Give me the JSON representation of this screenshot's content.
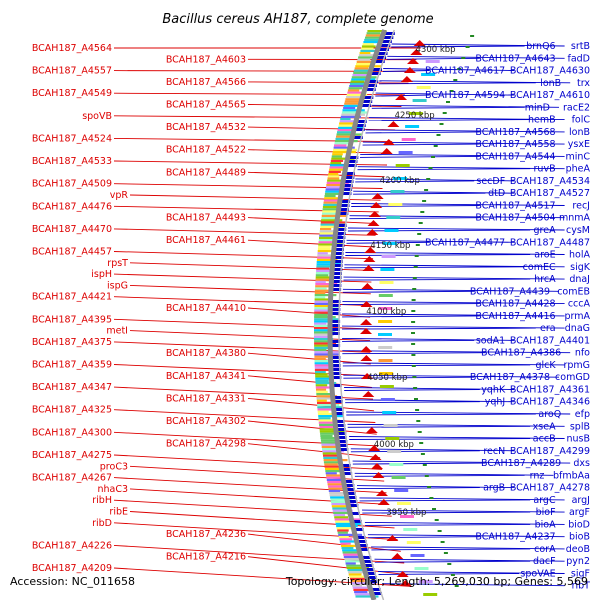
{
  "title": "Bacillus cereus AH187, complete genome",
  "footer": {
    "accession": "Accession: NC_011658",
    "summary": "Topology: circular; Length: 5,269,030 bp; Genes: 5,569"
  },
  "colors": {
    "forward": "#0000cc",
    "reverse": "#dd0000",
    "backbone": "#888888",
    "tick": "#228822"
  },
  "kbp_marks": [
    "4300 kbp",
    "4250 kbp",
    "4200 kbp",
    "4150 kbp",
    "4100 kbp",
    "4050 kbp",
    "4000 kbp",
    "3950 kbp"
  ],
  "left_labels": [
    "BCAH187_A4564",
    "BCAH187_A4603",
    "BCAH187_A4557",
    "BCAH187_A4566",
    "BCAH187_A4549",
    "BCAH187_A4565",
    "spoVB",
    "BCAH187_A4532",
    "BCAH187_A4524",
    "BCAH187_A4522",
    "BCAH187_A4533",
    "BCAH187_A4489",
    "BCAH187_A4509",
    "vpR",
    "BCAH187_A4476",
    "BCAH187_A4493",
    "BCAH187_A4470",
    "BCAH187_A4461",
    "BCAH187_A4457",
    "rpsT",
    "ispH",
    "ispG",
    "BCAH187_A4421",
    "BCAH187_A4410",
    "BCAH187_A4395",
    "metI",
    "BCAH187_A4375",
    "BCAH187_A4380",
    "BCAH187_A4359",
    "BCAH187_A4341",
    "BCAH187_A4347",
    "BCAH187_A4331",
    "BCAH187_A4325",
    "BCAH187_A4302",
    "BCAH187_A4300",
    "BCAH187_A4298",
    "BCAH187_A4275",
    "proC3",
    "BCAH187_A4267",
    "nhaC3",
    "ribH",
    "ribE",
    "ribD",
    "BCAH187_A4236",
    "BCAH187_A4226",
    "BCAH187_A4216",
    "BCAH187_A4209"
  ],
  "right_labels": [
    "srtB",
    "brnQ6",
    "fadD",
    "BCAH187_A4643",
    "BCAH187_A4630",
    "BCAH187_A4617",
    "trx",
    "lonB",
    "BCAH187_A4610",
    "BCAH187_A4594",
    "racE2",
    "minD",
    "folC",
    "hemB",
    "lonB",
    "BCAH187_A4568",
    "ysxE",
    "BCAH187_A4558",
    "minC",
    "BCAH187_A4544",
    "pheA",
    "ruvB",
    "BCAH187_A4534",
    "secDF",
    "BCAH187_A4527",
    "dtD",
    "recJ",
    "BCAH187_A4517",
    "mnmA",
    "BCAH187_A4504",
    "cysM",
    "greA",
    "BCAH187_A4487",
    "BCAH187_A4477",
    "holA",
    "aroE",
    "sigK",
    "comEC",
    "dnaJ",
    "hrcA",
    "comEB",
    "BCAH187_A4439",
    "cccA",
    "BCAH187_A4428",
    "prmA",
    "BCAH187_A4416",
    "dnaG",
    "era",
    "BCAH187_A4401",
    "sodA1",
    "nfo",
    "BCAH187_A4386",
    "rpmG",
    "glcK",
    "comGD",
    "BCAH187_A4378",
    "BCAH187_A4361",
    "yqhK",
    "BCAH187_A4346",
    "yqhJ",
    "efp",
    "aroQ",
    "splB",
    "xseA",
    "nusB",
    "accB",
    "BCAH187_A4299",
    "recN",
    "dxs",
    "BCAH187_A4289",
    "bfmbAa",
    "rnz",
    "BCAH187_A4278",
    "argB",
    "argJ",
    "argC",
    "argF",
    "bioF",
    "bioD",
    "bioA",
    "bioB",
    "BCAH187_A4237",
    "deoB",
    "corA",
    "pyn2",
    "dacF",
    "sigF",
    "spoVAE",
    "ribT"
  ]
}
